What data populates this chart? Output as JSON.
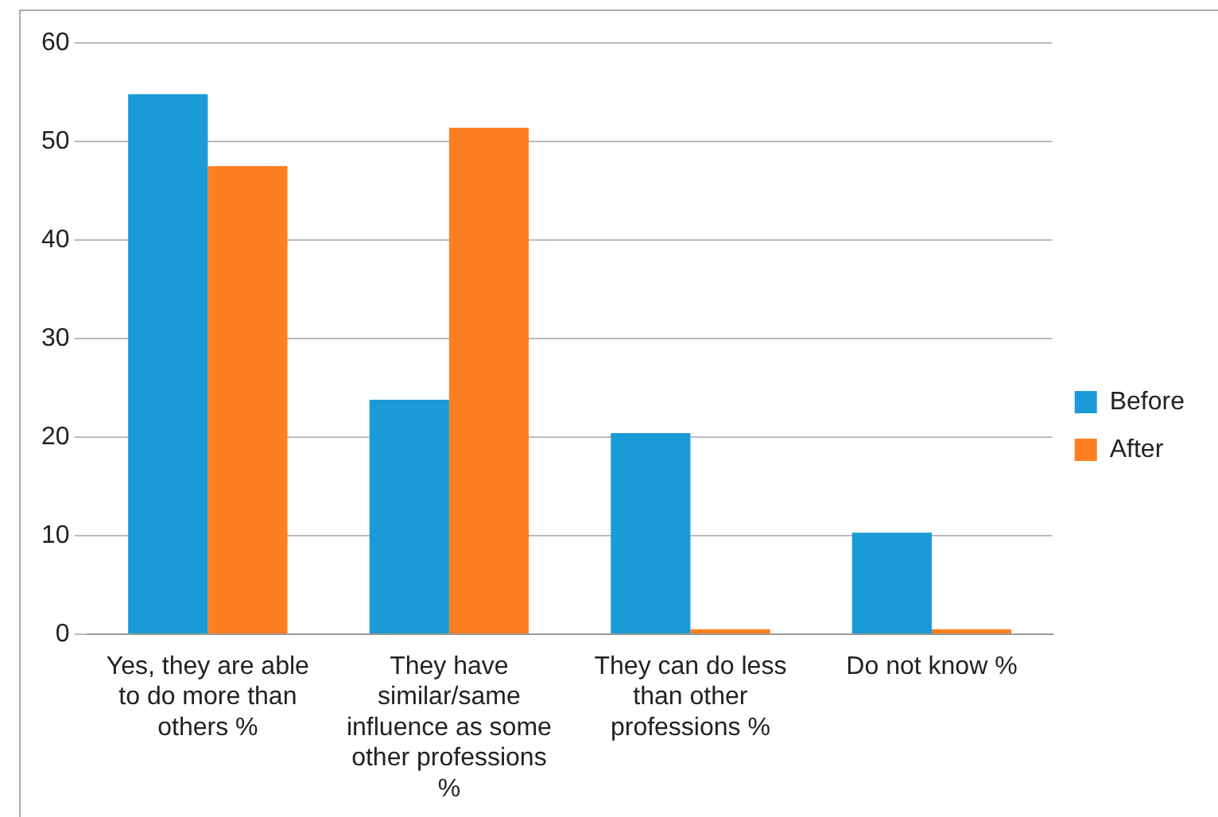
{
  "chart_data": {
    "type": "bar",
    "categories": [
      "Yes, they are able to do more than others %",
      "They have similar/same influence as some other professions %",
      "They can do less than other professions %",
      "Do not know %"
    ],
    "series": [
      {
        "name": "Before",
        "color": "#1a9ad6",
        "values": [
          54.8,
          23.8,
          20.4,
          10.3
        ]
      },
      {
        "name": "After",
        "color": "#fd7f20",
        "values": [
          47.5,
          51.4,
          0.5,
          0.5
        ]
      }
    ],
    "ylim": [
      0,
      60
    ],
    "yticks": [
      0,
      10,
      20,
      30,
      40,
      50,
      60
    ],
    "grid": "y",
    "legend": "right"
  }
}
